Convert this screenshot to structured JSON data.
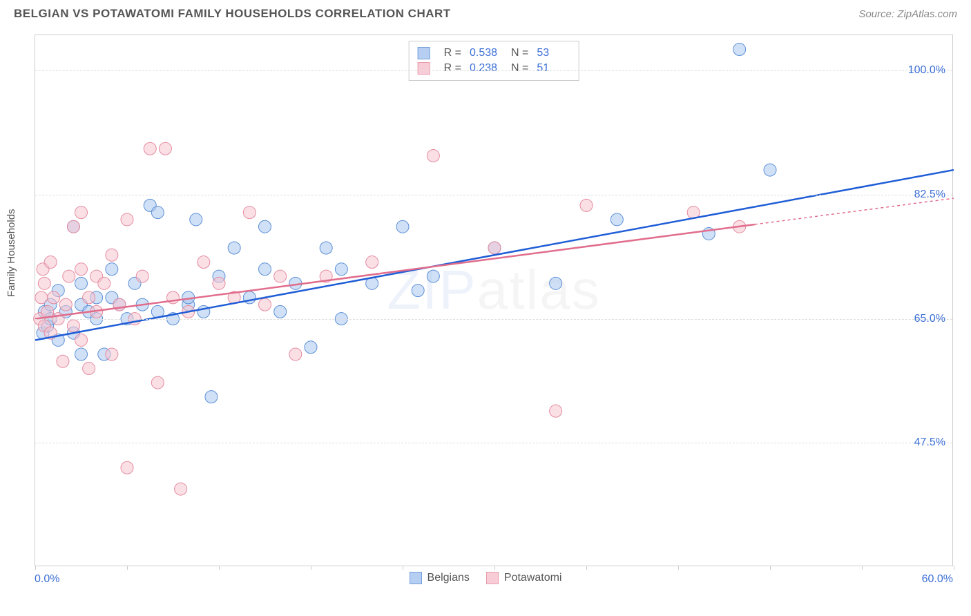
{
  "title": "BELGIAN VS POTAWATOMI FAMILY HOUSEHOLDS CORRELATION CHART",
  "source": "Source: ZipAtlas.com",
  "ylabel": "Family Households",
  "watermark": {
    "part1": "ZIP",
    "part2": "atlas"
  },
  "chart": {
    "type": "scatter",
    "xlim": [
      0,
      60
    ],
    "ylim": [
      30,
      105
    ],
    "xaxis_min_label": "0.0%",
    "xaxis_max_label": "60.0%",
    "yticks": [
      {
        "value": 47.5,
        "label": "47.5%"
      },
      {
        "value": 65.0,
        "label": "65.0%"
      },
      {
        "value": 82.5,
        "label": "82.5%"
      },
      {
        "value": 100.0,
        "label": "100.0%"
      }
    ],
    "xtick_positions": [
      0,
      6,
      12,
      18,
      24,
      30,
      36,
      42,
      48,
      54,
      60
    ],
    "grid_color": "#dddddd",
    "border_color": "#cccccc",
    "background_color": "#ffffff",
    "tick_label_color": "#3b6fd6",
    "marker_radius": 9,
    "marker_opacity": 0.55,
    "line_width": 2.5,
    "dash_extension": "4,4",
    "series": [
      {
        "name": "Belgians",
        "color_fill": "#a9c6ef",
        "color_stroke": "#5b8fd6",
        "line_color": "#1f5dd6",
        "R": "0.538",
        "N": "53",
        "points": [
          [
            0.5,
            63
          ],
          [
            0.6,
            66
          ],
          [
            0.8,
            64
          ],
          [
            1,
            67
          ],
          [
            1,
            65
          ],
          [
            1.5,
            69
          ],
          [
            1.5,
            62
          ],
          [
            2,
            66
          ],
          [
            2.5,
            63
          ],
          [
            2.5,
            78
          ],
          [
            3,
            70
          ],
          [
            3,
            67
          ],
          [
            3,
            60
          ],
          [
            3.5,
            66
          ],
          [
            4,
            68
          ],
          [
            4,
            65
          ],
          [
            4.5,
            60
          ],
          [
            5,
            68
          ],
          [
            5,
            72
          ],
          [
            5.5,
            67
          ],
          [
            6,
            65
          ],
          [
            6.5,
            70
          ],
          [
            7,
            67
          ],
          [
            7.5,
            81
          ],
          [
            8,
            80
          ],
          [
            8,
            66
          ],
          [
            9,
            65
          ],
          [
            10,
            67
          ],
          [
            10,
            68
          ],
          [
            10.5,
            79
          ],
          [
            11,
            66
          ],
          [
            11.5,
            54
          ],
          [
            12,
            71
          ],
          [
            13,
            75
          ],
          [
            14,
            68
          ],
          [
            15,
            78
          ],
          [
            15,
            72
          ],
          [
            16,
            66
          ],
          [
            17,
            70
          ],
          [
            18,
            61
          ],
          [
            19,
            75
          ],
          [
            20,
            72
          ],
          [
            20,
            65
          ],
          [
            22,
            70
          ],
          [
            24,
            78
          ],
          [
            25,
            69
          ],
          [
            26,
            71
          ],
          [
            30,
            75
          ],
          [
            34,
            70
          ],
          [
            38,
            79
          ],
          [
            44,
            77
          ],
          [
            46,
            103
          ],
          [
            48,
            86
          ]
        ],
        "trend": {
          "x1": 0,
          "y1": 62,
          "x2": 60,
          "y2": 86,
          "solid_until_x": 60
        }
      },
      {
        "name": "Potawatomi",
        "color_fill": "#f6c4cf",
        "color_stroke": "#e58ba0",
        "line_color": "#e16d8c",
        "R": "0.238",
        "N": "51",
        "points": [
          [
            0.3,
            65
          ],
          [
            0.4,
            68
          ],
          [
            0.5,
            72
          ],
          [
            0.6,
            64
          ],
          [
            0.6,
            70
          ],
          [
            0.8,
            66
          ],
          [
            1,
            63
          ],
          [
            1,
            73
          ],
          [
            1.2,
            68
          ],
          [
            1.5,
            65
          ],
          [
            1.8,
            59
          ],
          [
            2,
            67
          ],
          [
            2.2,
            71
          ],
          [
            2.5,
            78
          ],
          [
            2.5,
            64
          ],
          [
            3,
            72
          ],
          [
            3,
            62
          ],
          [
            3,
            80
          ],
          [
            3.5,
            68
          ],
          [
            3.5,
            58
          ],
          [
            4,
            66
          ],
          [
            4,
            71
          ],
          [
            4.5,
            70
          ],
          [
            5,
            74
          ],
          [
            5,
            60
          ],
          [
            5.5,
            67
          ],
          [
            6,
            44
          ],
          [
            6,
            79
          ],
          [
            6.5,
            65
          ],
          [
            7,
            71
          ],
          [
            7.5,
            89
          ],
          [
            8,
            56
          ],
          [
            8.5,
            89
          ],
          [
            9,
            68
          ],
          [
            9.5,
            41
          ],
          [
            10,
            66
          ],
          [
            11,
            73
          ],
          [
            12,
            70
          ],
          [
            13,
            68
          ],
          [
            14,
            80
          ],
          [
            15,
            67
          ],
          [
            16,
            71
          ],
          [
            17,
            60
          ],
          [
            19,
            71
          ],
          [
            22,
            73
          ],
          [
            26,
            88
          ],
          [
            30,
            75
          ],
          [
            34,
            52
          ],
          [
            36,
            81
          ],
          [
            43,
            80
          ],
          [
            46,
            78
          ]
        ],
        "trend": {
          "x1": 0,
          "y1": 65,
          "x2": 60,
          "y2": 82,
          "solid_until_x": 47
        }
      }
    ]
  },
  "bottom_legend": [
    {
      "label": "Belgians",
      "fill": "#a9c6ef",
      "stroke": "#5b8fd6"
    },
    {
      "label": "Potawatomi",
      "fill": "#f6c4cf",
      "stroke": "#e58ba0"
    }
  ]
}
